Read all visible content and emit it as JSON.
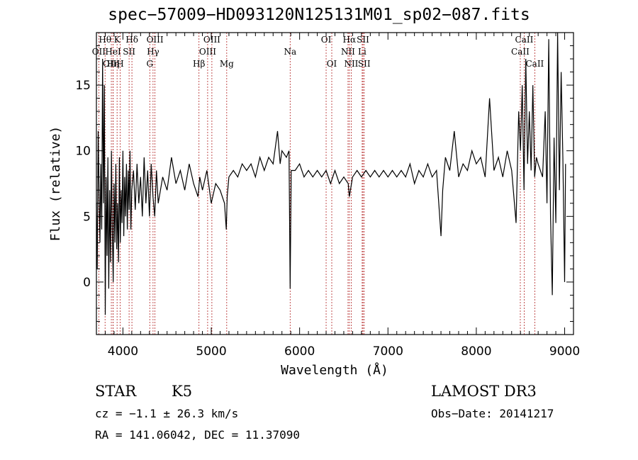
{
  "chart_data": {
    "type": "line",
    "title": "spec−57009−HD093120N125131M01_sp02−087.fits",
    "xlabel": "Wavelength (Å)",
    "ylabel": "Flux (relative)",
    "xlim": [
      3700,
      9100
    ],
    "ylim": [
      -4,
      19
    ],
    "xticks": [
      {
        "value": 4000,
        "label": "4000"
      },
      {
        "value": 5000,
        "label": "5000"
      },
      {
        "value": 6000,
        "label": "6000"
      },
      {
        "value": 7000,
        "label": "7000"
      },
      {
        "value": 8000,
        "label": "8000"
      },
      {
        "value": 9000,
        "label": "9000"
      }
    ],
    "yticks": [
      {
        "value": 0,
        "label": "0"
      },
      {
        "value": 5,
        "label": "5"
      },
      {
        "value": 10,
        "label": "10"
      },
      {
        "value": 15,
        "label": "15"
      }
    ],
    "line_color": "#000000",
    "marker_color": "#b22222",
    "spectral_lines": [
      {
        "label": "OII",
        "wavelength": 3727,
        "row": 2
      },
      {
        "label": "Hθ",
        "wavelength": 3798,
        "row": 1
      },
      {
        "label": "OIII",
        "wavelength": 3869,
        "row": 3
      },
      {
        "label": "HeI",
        "wavelength": 3889,
        "row": 2
      },
      {
        "label": "K",
        "wavelength": 3934,
        "row": 1
      },
      {
        "label": "Hη",
        "wavelength": 3889,
        "row": 3
      },
      {
        "label": "H",
        "wavelength": 3969,
        "row": 3
      },
      {
        "label": "SII",
        "wavelength": 4070,
        "row": 2
      },
      {
        "label": "Hδ",
        "wavelength": 4102,
        "row": 1
      },
      {
        "label": "G",
        "wavelength": 4304,
        "row": 3
      },
      {
        "label": "Hγ",
        "wavelength": 4341,
        "row": 2
      },
      {
        "label": "OIII",
        "wavelength": 4363,
        "row": 1
      },
      {
        "label": "Hβ",
        "wavelength": 4861,
        "row": 3
      },
      {
        "label": "OIII",
        "wavelength": 4959,
        "row": 2
      },
      {
        "label": "OIII",
        "wavelength": 5007,
        "row": 1
      },
      {
        "label": "Mg",
        "wavelength": 5175,
        "row": 3
      },
      {
        "label": "Na",
        "wavelength": 5893,
        "row": 2
      },
      {
        "label": "OI",
        "wavelength": 6300,
        "row": 1
      },
      {
        "label": "OI",
        "wavelength": 6364,
        "row": 3
      },
      {
        "label": "NII",
        "wavelength": 6548,
        "row": 2
      },
      {
        "label": "Hα",
        "wavelength": 6563,
        "row": 1
      },
      {
        "label": "NII",
        "wavelength": 6584,
        "row": 3
      },
      {
        "label": "SII",
        "wavelength": 6717,
        "row": 1
      },
      {
        "label": "Li",
        "wavelength": 6708,
        "row": 2
      },
      {
        "label": "SII",
        "wavelength": 6731,
        "row": 3
      },
      {
        "label": "CaII",
        "wavelength": 8498,
        "row": 2
      },
      {
        "label": "CaII",
        "wavelength": 8542,
        "row": 1
      },
      {
        "label": "CaII",
        "wavelength": 8662,
        "row": 3
      }
    ],
    "flux_points": [
      [
        3700,
        6.0
      ],
      [
        3710,
        1.0
      ],
      [
        3720,
        11.5
      ],
      [
        3730,
        7.0
      ],
      [
        3740,
        3.0
      ],
      [
        3750,
        9.0
      ],
      [
        3760,
        4.0
      ],
      [
        3770,
        17.0
      ],
      [
        3780,
        6.0
      ],
      [
        3790,
        15.0
      ],
      [
        3800,
        -2.5
      ],
      [
        3810,
        8.0
      ],
      [
        3820,
        2.0
      ],
      [
        3830,
        9.5
      ],
      [
        3840,
        -0.5
      ],
      [
        3850,
        7.0
      ],
      [
        3860,
        1.5
      ],
      [
        3870,
        10.0
      ],
      [
        3880,
        4.0
      ],
      [
        3890,
        0.0
      ],
      [
        3900,
        7.5
      ],
      [
        3910,
        3.0
      ],
      [
        3920,
        9.0
      ],
      [
        3930,
        2.5
      ],
      [
        3940,
        6.0
      ],
      [
        3950,
        1.5
      ],
      [
        3960,
        9.5
      ],
      [
        3970,
        3.0
      ],
      [
        3980,
        7.0
      ],
      [
        3990,
        4.5
      ],
      [
        4000,
        10.0
      ],
      [
        4010,
        3.5
      ],
      [
        4020,
        8.0
      ],
      [
        4030,
        5.0
      ],
      [
        4040,
        9.0
      ],
      [
        4050,
        4.0
      ],
      [
        4060,
        8.5
      ],
      [
        4070,
        5.5
      ],
      [
        4080,
        10.0
      ],
      [
        4090,
        4.0
      ],
      [
        4100,
        7.0
      ],
      [
        4120,
        8.5
      ],
      [
        4140,
        5.5
      ],
      [
        4160,
        9.0
      ],
      [
        4180,
        6.0
      ],
      [
        4200,
        8.0
      ],
      [
        4220,
        5.0
      ],
      [
        4240,
        9.5
      ],
      [
        4260,
        6.0
      ],
      [
        4280,
        8.5
      ],
      [
        4300,
        5.0
      ],
      [
        4320,
        9.0
      ],
      [
        4340,
        6.5
      ],
      [
        4360,
        5.0
      ],
      [
        4380,
        8.5
      ],
      [
        4400,
        6.0
      ],
      [
        4450,
        8.0
      ],
      [
        4500,
        7.0
      ],
      [
        4550,
        9.5
      ],
      [
        4600,
        7.5
      ],
      [
        4650,
        8.5
      ],
      [
        4700,
        7.0
      ],
      [
        4750,
        9.0
      ],
      [
        4800,
        7.5
      ],
      [
        4850,
        6.5
      ],
      [
        4870,
        8.0
      ],
      [
        4900,
        7.0
      ],
      [
        4950,
        8.5
      ],
      [
        5000,
        6.0
      ],
      [
        5050,
        7.5
      ],
      [
        5100,
        7.0
      ],
      [
        5150,
        6.0
      ],
      [
        5170,
        4.0
      ],
      [
        5180,
        6.5
      ],
      [
        5200,
        8.0
      ],
      [
        5250,
        8.5
      ],
      [
        5300,
        8.0
      ],
      [
        5350,
        9.0
      ],
      [
        5400,
        8.5
      ],
      [
        5450,
        9.0
      ],
      [
        5500,
        8.0
      ],
      [
        5550,
        9.5
      ],
      [
        5600,
        8.5
      ],
      [
        5650,
        9.5
      ],
      [
        5700,
        9.0
      ],
      [
        5750,
        11.5
      ],
      [
        5780,
        9.0
      ],
      [
        5800,
        10.0
      ],
      [
        5850,
        9.5
      ],
      [
        5880,
        10.0
      ],
      [
        5893,
        -0.5
      ],
      [
        5905,
        8.5
      ],
      [
        5950,
        8.5
      ],
      [
        6000,
        9.0
      ],
      [
        6050,
        8.0
      ],
      [
        6100,
        8.5
      ],
      [
        6150,
        8.0
      ],
      [
        6200,
        8.5
      ],
      [
        6250,
        8.0
      ],
      [
        6300,
        8.5
      ],
      [
        6350,
        7.5
      ],
      [
        6400,
        8.5
      ],
      [
        6450,
        7.5
      ],
      [
        6500,
        8.0
      ],
      [
        6550,
        7.5
      ],
      [
        6563,
        6.5
      ],
      [
        6600,
        8.0
      ],
      [
        6650,
        8.5
      ],
      [
        6700,
        8.0
      ],
      [
        6750,
        8.5
      ],
      [
        6800,
        8.0
      ],
      [
        6850,
        8.5
      ],
      [
        6900,
        8.0
      ],
      [
        6950,
        8.5
      ],
      [
        7000,
        8.0
      ],
      [
        7050,
        8.5
      ],
      [
        7100,
        8.0
      ],
      [
        7150,
        8.5
      ],
      [
        7200,
        8.0
      ],
      [
        7250,
        9.0
      ],
      [
        7300,
        7.5
      ],
      [
        7350,
        8.5
      ],
      [
        7400,
        8.0
      ],
      [
        7450,
        9.0
      ],
      [
        7500,
        8.0
      ],
      [
        7550,
        8.5
      ],
      [
        7600,
        3.5
      ],
      [
        7620,
        7.0
      ],
      [
        7650,
        9.5
      ],
      [
        7700,
        8.5
      ],
      [
        7750,
        11.5
      ],
      [
        7800,
        8.0
      ],
      [
        7850,
        9.0
      ],
      [
        7900,
        8.5
      ],
      [
        7950,
        10.0
      ],
      [
        8000,
        9.0
      ],
      [
        8050,
        9.5
      ],
      [
        8100,
        8.0
      ],
      [
        8150,
        14.0
      ],
      [
        8200,
        8.5
      ],
      [
        8250,
        9.5
      ],
      [
        8300,
        8.0
      ],
      [
        8350,
        10.0
      ],
      [
        8400,
        8.5
      ],
      [
        8450,
        4.5
      ],
      [
        8480,
        13.0
      ],
      [
        8500,
        10.0
      ],
      [
        8520,
        15.0
      ],
      [
        8540,
        7.0
      ],
      [
        8560,
        17.0
      ],
      [
        8580,
        9.0
      ],
      [
        8600,
        13.0
      ],
      [
        8620,
        8.5
      ],
      [
        8640,
        15.0
      ],
      [
        8660,
        8.0
      ],
      [
        8680,
        9.5
      ],
      [
        8700,
        9.0
      ],
      [
        8750,
        8.0
      ],
      [
        8780,
        13.0
      ],
      [
        8800,
        6.0
      ],
      [
        8820,
        18.5
      ],
      [
        8840,
        5.0
      ],
      [
        8860,
        -1.0
      ],
      [
        8880,
        11.0
      ],
      [
        8900,
        4.5
      ],
      [
        8920,
        19.0
      ],
      [
        8940,
        7.0
      ],
      [
        8960,
        16.0
      ],
      [
        8980,
        9.5
      ],
      [
        9000,
        0.0
      ],
      [
        9010,
        9.0
      ]
    ]
  },
  "info": {
    "class": "STAR",
    "subclass": "K5",
    "survey": "LAMOST DR3",
    "redshift": "cz = −1.1 ± 26.3 km/s",
    "obs_date": "Obs−Date: 20141217",
    "coords": "RA = 141.06042, DEC =  11.37090"
  }
}
